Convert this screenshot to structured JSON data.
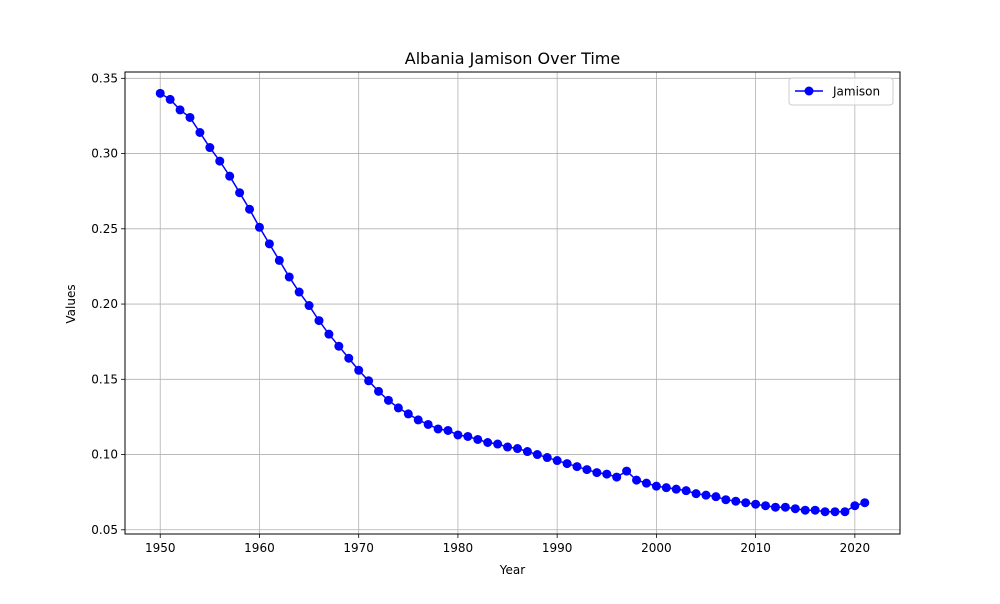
{
  "chart_data": {
    "type": "line",
    "title": "Albania Jamison Over Time",
    "xlabel": "Year",
    "ylabel": "Values",
    "xlim": [
      1946.45,
      2024.55
    ],
    "ylim": [
      0.0472,
      0.3542
    ],
    "xticks": [
      1950,
      1960,
      1970,
      1980,
      1990,
      2000,
      2010,
      2020
    ],
    "yticks": [
      0.05,
      0.1,
      0.15,
      0.2,
      0.25,
      0.3,
      0.35
    ],
    "grid": true,
    "legend_position": "top-right",
    "series": [
      {
        "name": "Jamison",
        "color": "#0000ff",
        "marker": "circle",
        "x": [
          1950,
          1951,
          1952,
          1953,
          1954,
          1955,
          1956,
          1957,
          1958,
          1959,
          1960,
          1961,
          1962,
          1963,
          1964,
          1965,
          1966,
          1967,
          1968,
          1969,
          1970,
          1971,
          1972,
          1973,
          1974,
          1975,
          1976,
          1977,
          1978,
          1979,
          1980,
          1981,
          1982,
          1983,
          1984,
          1985,
          1986,
          1987,
          1988,
          1989,
          1990,
          1991,
          1992,
          1993,
          1994,
          1995,
          1996,
          1997,
          1998,
          1999,
          2000,
          2001,
          2002,
          2003,
          2004,
          2005,
          2006,
          2007,
          2008,
          2009,
          2010,
          2011,
          2012,
          2013,
          2014,
          2015,
          2016,
          2017,
          2018,
          2019,
          2020,
          2021
        ],
        "y": [
          0.34,
          0.336,
          0.329,
          0.324,
          0.314,
          0.304,
          0.295,
          0.285,
          0.274,
          0.263,
          0.251,
          0.24,
          0.229,
          0.218,
          0.208,
          0.199,
          0.189,
          0.18,
          0.172,
          0.164,
          0.156,
          0.149,
          0.142,
          0.136,
          0.131,
          0.127,
          0.123,
          0.12,
          0.117,
          0.116,
          0.113,
          0.112,
          0.11,
          0.108,
          0.107,
          0.105,
          0.104,
          0.102,
          0.1,
          0.098,
          0.096,
          0.094,
          0.092,
          0.09,
          0.088,
          0.087,
          0.085,
          0.089,
          0.083,
          0.081,
          0.079,
          0.078,
          0.077,
          0.076,
          0.074,
          0.073,
          0.072,
          0.07,
          0.069,
          0.068,
          0.067,
          0.066,
          0.065,
          0.065,
          0.064,
          0.063,
          0.063,
          0.062,
          0.062,
          0.062,
          0.066,
          0.068
        ]
      }
    ]
  }
}
